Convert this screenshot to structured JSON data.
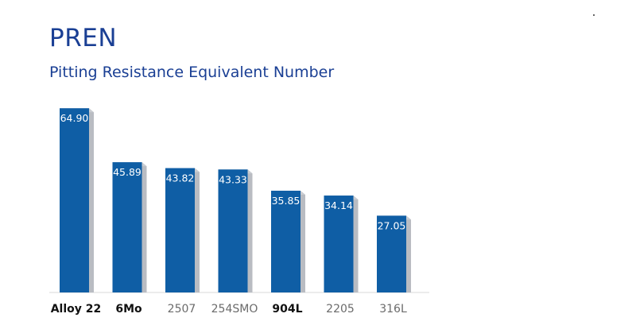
{
  "header": {
    "title": "PREN",
    "subtitle": "Pitting Resistance Equivalent Number"
  },
  "colors": {
    "bar": "#0f5ea5",
    "bar_side": "#b9bcc2",
    "title": "#1a3f94",
    "label": "#ffffff",
    "category_bold": "#111111",
    "category_normal": "#6b6b6b"
  },
  "chart_data": {
    "type": "bar",
    "title": "PREN",
    "subtitle": "Pitting Resistance Equivalent Number",
    "xlabel": "",
    "ylabel": "",
    "ylim": [
      0,
      70
    ],
    "grid": false,
    "categories": [
      "Alloy 22",
      "6Mo",
      "2507",
      "254SMO",
      "904L",
      "2205",
      "316L"
    ],
    "values": [
      64.9,
      45.89,
      43.82,
      43.33,
      35.85,
      34.14,
      27.05
    ],
    "value_labels": [
      "64.90",
      "45.89",
      "43.82",
      "43.33",
      "35.85",
      "34.14",
      "27.05"
    ],
    "bold_categories": [
      "Alloy 22",
      "6Mo",
      "904L"
    ]
  }
}
